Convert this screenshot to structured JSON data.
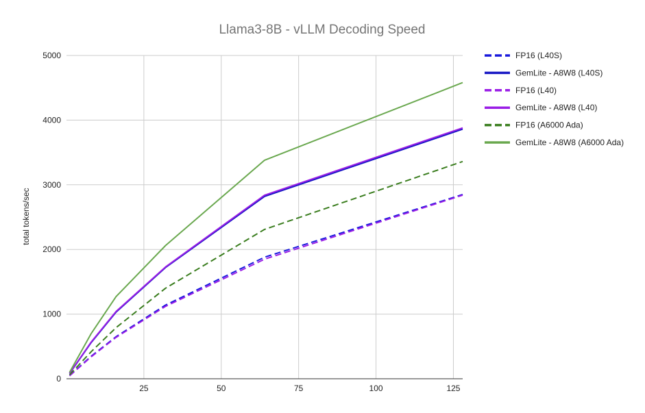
{
  "chart_data": {
    "type": "line",
    "title": "Llama3-8B - vLLM Decoding Speed",
    "xlabel": "",
    "ylabel": "total tokens/sec",
    "xlim": [
      0,
      128
    ],
    "ylim": [
      0,
      5000
    ],
    "xticks": [
      25,
      50,
      75,
      100,
      125
    ],
    "yticks": [
      0,
      1000,
      2000,
      3000,
      4000,
      5000
    ],
    "grid": true,
    "legend_position": "right",
    "series": [
      {
        "name": "FP16 (L40S)",
        "color": "#1a1adc",
        "dashed": true,
        "x": [
          1,
          8,
          16,
          32,
          64,
          128
        ],
        "y": [
          50,
          350,
          650,
          1140,
          1880,
          2850
        ]
      },
      {
        "name": "GemLite - A8W8 (L40S)",
        "color": "#1717c4",
        "dashed": false,
        "x": [
          1,
          8,
          16,
          32,
          64,
          128
        ],
        "y": [
          80,
          560,
          1030,
          1720,
          2820,
          3860
        ]
      },
      {
        "name": "FP16 (L40)",
        "color": "#9a1ee6",
        "dashed": true,
        "x": [
          1,
          8,
          16,
          32,
          64,
          128
        ],
        "y": [
          45,
          340,
          640,
          1120,
          1850,
          2840
        ]
      },
      {
        "name": "GemLite - A8W8 (L40)",
        "color": "#9a1ee6",
        "dashed": false,
        "x": [
          1,
          8,
          16,
          32,
          64,
          128
        ],
        "y": [
          85,
          570,
          1040,
          1730,
          2840,
          3880
        ]
      },
      {
        "name": "FP16 (A6000 Ada)",
        "color": "#3a7d1e",
        "dashed": true,
        "x": [
          1,
          8,
          16,
          32,
          64,
          128
        ],
        "y": [
          60,
          420,
          790,
          1400,
          2310,
          3360
        ]
      },
      {
        "name": "GemLite - A8W8 (A6000 Ada)",
        "color": "#6aa84f",
        "dashed": false,
        "x": [
          1,
          8,
          16,
          32,
          64,
          128
        ],
        "y": [
          100,
          700,
          1270,
          2060,
          3380,
          4580
        ]
      }
    ]
  }
}
